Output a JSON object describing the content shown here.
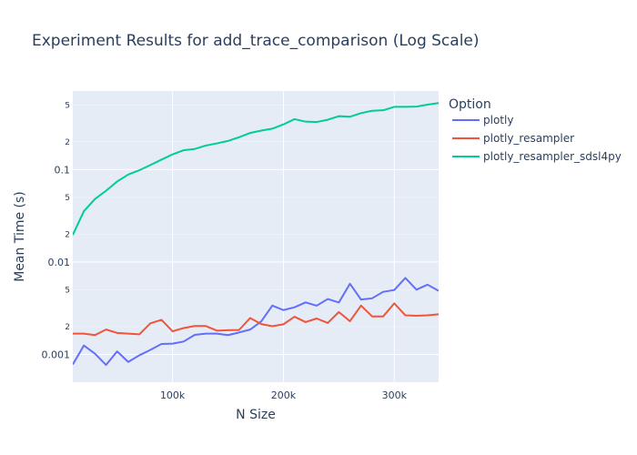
{
  "chart_data": {
    "type": "line",
    "title": "Experiment Results for add_trace_comparison (Log Scale)",
    "xlabel": "N Size",
    "ylabel": "Mean Time (s)",
    "xlim": [
      10000,
      340000
    ],
    "ylim_log10": [
      -3.3,
      -0.15
    ],
    "y_scale": "log",
    "grid": true,
    "legend_title": "Option",
    "legend_position": "right",
    "x_ticks": [
      {
        "value": 100000,
        "label": "100k"
      },
      {
        "value": 200000,
        "label": "200k"
      },
      {
        "value": 300000,
        "label": "300k"
      }
    ],
    "y_major_ticks": [
      {
        "value": 0.001,
        "label": "0.001"
      },
      {
        "value": 0.01,
        "label": "0.01"
      },
      {
        "value": 0.1,
        "label": "0.1"
      }
    ],
    "y_minor_ticks": [
      {
        "value": 0.002,
        "label": "2"
      },
      {
        "value": 0.005,
        "label": "5"
      },
      {
        "value": 0.02,
        "label": "2"
      },
      {
        "value": 0.05,
        "label": "5"
      },
      {
        "value": 0.2,
        "label": "2"
      },
      {
        "value": 0.5,
        "label": "5"
      }
    ],
    "x": [
      10000,
      20000,
      30000,
      40000,
      50000,
      60000,
      70000,
      80000,
      90000,
      100000,
      110000,
      120000,
      130000,
      140000,
      150000,
      160000,
      170000,
      180000,
      190000,
      200000,
      210000,
      220000,
      230000,
      240000,
      250000,
      260000,
      270000,
      280000,
      290000,
      300000,
      310000,
      320000,
      330000,
      340000
    ],
    "series": [
      {
        "name": "plotly",
        "color": "#636efa",
        "values": [
          0.00078,
          0.00125,
          0.00102,
          0.00077,
          0.00108,
          0.00083,
          0.00098,
          0.00112,
          0.0013,
          0.00131,
          0.00138,
          0.00163,
          0.00168,
          0.00168,
          0.00162,
          0.00173,
          0.00186,
          0.00228,
          0.00338,
          0.00302,
          0.00324,
          0.00366,
          0.00337,
          0.00398,
          0.00365,
          0.00582,
          0.00393,
          0.00405,
          0.00476,
          0.00498,
          0.00672,
          0.00502,
          0.00569,
          0.00487
        ]
      },
      {
        "name": "plotly_resampler",
        "color": "#ef553b",
        "values": [
          0.00168,
          0.00168,
          0.00162,
          0.00186,
          0.00171,
          0.00168,
          0.00165,
          0.00217,
          0.00237,
          0.00178,
          0.00193,
          0.00203,
          0.00203,
          0.00181,
          0.00183,
          0.00184,
          0.00248,
          0.00213,
          0.00202,
          0.00212,
          0.00256,
          0.00224,
          0.00245,
          0.00219,
          0.00288,
          0.00229,
          0.00338,
          0.00258,
          0.00258,
          0.00357,
          0.00265,
          0.00262,
          0.00265,
          0.00272
        ]
      },
      {
        "name": "plotly_resampler_sdsl4py",
        "color": "#00cc96",
        "values": [
          0.0196,
          0.0355,
          0.048,
          0.059,
          0.0743,
          0.0884,
          0.0983,
          0.112,
          0.128,
          0.146,
          0.162,
          0.167,
          0.182,
          0.192,
          0.204,
          0.224,
          0.249,
          0.264,
          0.277,
          0.308,
          0.351,
          0.33,
          0.327,
          0.346,
          0.378,
          0.373,
          0.408,
          0.432,
          0.438,
          0.477,
          0.478,
          0.48,
          0.504,
          0.524
        ]
      }
    ]
  }
}
